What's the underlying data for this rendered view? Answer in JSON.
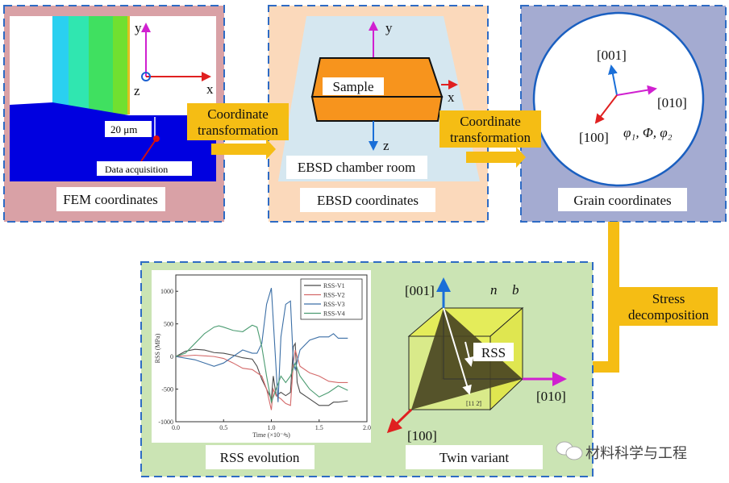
{
  "fem": {
    "title": "FEM coordinates",
    "scale": "20  μm",
    "probe": "Data acquisition",
    "axis_x": "x",
    "axis_y": "y",
    "axis_z": "z"
  },
  "transform1": {
    "line1": "Coordinate",
    "line2": "transformation"
  },
  "ebsd": {
    "title": "EBSD coordinates",
    "chamber": "EBSD chamber room",
    "sample": "Sample",
    "axis_x": "x",
    "axis_y": "y",
    "axis_z": "z"
  },
  "transform2": {
    "line1": "Coordinate",
    "line2": "transformation"
  },
  "grain": {
    "title": "Grain coordinates",
    "dir_001": "[001]",
    "dir_010": "[010]",
    "dir_100": "[100]",
    "euler": "φ₁, Φ, φ₂"
  },
  "stress": {
    "line1": "Stress",
    "line2": "decomposition"
  },
  "rss": {
    "title": "RSS evolution"
  },
  "twin": {
    "title": "Twin variant",
    "dir_001": "[001]",
    "dir_010": "[010]",
    "dir_100": "[100]",
    "n": "n⃗",
    "b": "b⃗",
    "rss": "RSS",
    "dir_112": "[11 2̄]"
  },
  "watermark": "材料科学与工程",
  "colors": {
    "fem_bg": "#d9a1a6",
    "ebsd_bg": "#fbd9bb",
    "grain_bg": "#a4abd1",
    "bottom_bg": "#cbe4b4",
    "arrow": "#f5bd14",
    "border": "#2e6bc4"
  },
  "chart_data": {
    "type": "line",
    "xlabel": "Time (×10⁻⁴s)",
    "ylabel": "RSS (MPa)",
    "xlim": [
      0,
      2.0
    ],
    "ylim": [
      -1000,
      1250
    ],
    "xticks": [
      "0.0",
      "0.5",
      "1.0",
      "1.5",
      "2.0"
    ],
    "yticks": [
      "-1000",
      "-500",
      "0",
      "500",
      "1000"
    ],
    "legend": "top-right",
    "series": [
      {
        "name": "RSS-V1",
        "color": "#4a4a4a",
        "x": [
          0,
          0.1,
          0.2,
          0.3,
          0.4,
          0.5,
          0.6,
          0.7,
          0.8,
          0.85,
          0.9,
          0.95,
          1.0,
          1.02,
          1.05,
          1.1,
          1.15,
          1.2,
          1.23,
          1.25,
          1.27,
          1.3,
          1.4,
          1.5,
          1.6,
          1.65,
          1.7,
          1.8
        ],
        "y": [
          0,
          80,
          110,
          100,
          60,
          50,
          20,
          -20,
          -40,
          -150,
          -350,
          -500,
          -650,
          -300,
          -600,
          -550,
          -600,
          -550,
          150,
          200,
          -400,
          -550,
          -650,
          -750,
          -750,
          -700,
          -700,
          -680
        ]
      },
      {
        "name": "RSS-V2",
        "color": "#d46a6a",
        "x": [
          0,
          0.2,
          0.4,
          0.5,
          0.6,
          0.7,
          0.8,
          0.9,
          0.95,
          1.0,
          1.02,
          1.05,
          1.1,
          1.15,
          1.2,
          1.23,
          1.25,
          1.3,
          1.4,
          1.5,
          1.6,
          1.7,
          1.8
        ],
        "y": [
          0,
          20,
          0,
          -30,
          -100,
          -180,
          -200,
          -300,
          -500,
          -820,
          -500,
          -600,
          -650,
          -720,
          -750,
          -100,
          100,
          -150,
          -250,
          -300,
          -380,
          -400,
          -400
        ]
      },
      {
        "name": "RSS-V3",
        "color": "#3c6fa6",
        "x": [
          0,
          0.2,
          0.4,
          0.5,
          0.6,
          0.7,
          0.8,
          0.85,
          0.9,
          0.95,
          1.0,
          1.03,
          1.07,
          1.1,
          1.15,
          1.2,
          1.23,
          1.25,
          1.3,
          1.4,
          1.5,
          1.6,
          1.65,
          1.7,
          1.8
        ],
        "y": [
          0,
          -50,
          -150,
          -100,
          0,
          100,
          50,
          50,
          200,
          800,
          1050,
          300,
          -700,
          300,
          800,
          850,
          -100,
          -200,
          100,
          250,
          300,
          300,
          350,
          280,
          280
        ]
      },
      {
        "name": "RSS-V4",
        "color": "#4c9c72",
        "x": [
          0,
          0.1,
          0.2,
          0.3,
          0.4,
          0.45,
          0.5,
          0.6,
          0.7,
          0.8,
          0.85,
          0.9,
          0.95,
          1.0,
          1.05,
          1.1,
          1.15,
          1.2,
          1.25,
          1.3,
          1.4,
          1.5,
          1.6,
          1.7,
          1.8
        ],
        "y": [
          0,
          50,
          200,
          350,
          450,
          470,
          450,
          400,
          380,
          480,
          450,
          150,
          -300,
          -700,
          -500,
          -300,
          -400,
          -300,
          -100,
          -300,
          -500,
          -620,
          -550,
          -450,
          -520
        ]
      }
    ]
  }
}
